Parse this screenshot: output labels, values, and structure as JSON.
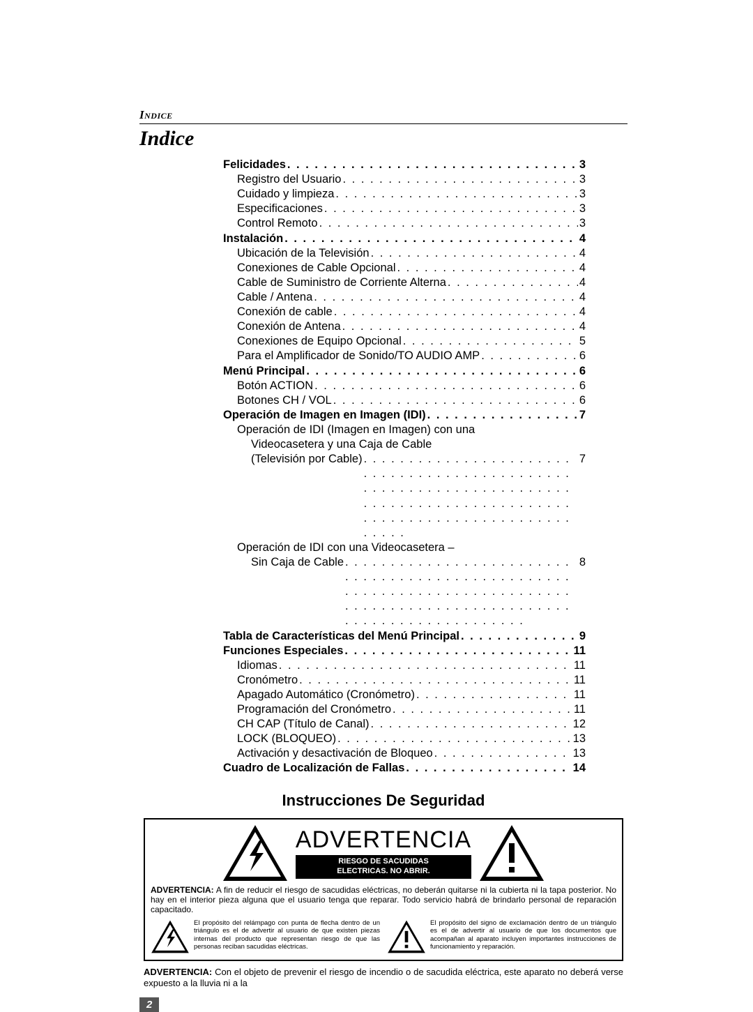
{
  "running_head": "Indice",
  "title": "Indice",
  "toc": [
    {
      "t": "bold",
      "label": "Felicidades",
      "page": "3"
    },
    {
      "t": "sub",
      "label": "Registro del Usuario",
      "page": "3"
    },
    {
      "t": "sub",
      "label": "Cuidado y limpieza",
      "page": "3"
    },
    {
      "t": "sub",
      "label": "Especificaciones",
      "page": "3"
    },
    {
      "t": "sub",
      "label": "Control Remoto",
      "page": "3"
    },
    {
      "t": "bold",
      "label": "Instalación",
      "page": "4"
    },
    {
      "t": "sub",
      "label": "Ubicación de la Televisión",
      "page": "4"
    },
    {
      "t": "sub",
      "label": "Conexiones de Cable Opcional",
      "page": "4"
    },
    {
      "t": "sub",
      "label": "Cable de Suministro de Corriente Alterna",
      "page": "4"
    },
    {
      "t": "sub",
      "label": "Cable / Antena",
      "page": "4"
    },
    {
      "t": "sub",
      "label": "Conexión de cable",
      "page": "4"
    },
    {
      "t": "sub",
      "label": "Conexión de Antena",
      "page": "4"
    },
    {
      "t": "sub",
      "label": "Conexiones de Equipo Opcional",
      "page": "5"
    },
    {
      "t": "sub",
      "label": "Para el Amplificador de Sonido/TO AUDIO AMP",
      "page": "6"
    },
    {
      "t": "bold",
      "label": "Menú Principal",
      "page": "6"
    },
    {
      "t": "sub",
      "label": "Botón ACTION",
      "page": "6"
    },
    {
      "t": "sub",
      "label": "Botones CH / VOL",
      "page": "6"
    },
    {
      "t": "bold",
      "label": "Operación de Imagen en Imagen (IDI)",
      "page": "7"
    },
    {
      "t": "multi",
      "lines": [
        "Operación de IDI (Imagen en Imagen) con una",
        "Videocasetera y una Caja de Cable"
      ],
      "last": "(Televisión por Cable)",
      "page": "7"
    },
    {
      "t": "multi",
      "lines": [
        "Operación de IDI con una Videocasetera –"
      ],
      "last": "Sin Caja de Cable",
      "page": "8"
    },
    {
      "t": "bold",
      "label": "Tabla de Características del Menú Principal",
      "page": "9"
    },
    {
      "t": "bold",
      "label": "Funciones Especiales",
      "page": "11"
    },
    {
      "t": "sub",
      "label": "Idiomas",
      "page": "11"
    },
    {
      "t": "sub",
      "label": "Cronómetro",
      "page": "11"
    },
    {
      "t": "sub",
      "label": "Apagado Automático (Cronómetro)",
      "page": "11"
    },
    {
      "t": "sub",
      "label": "Programación del Cronómetro",
      "page": "11"
    },
    {
      "t": "sub",
      "label": "CH CAP (Título de Canal)",
      "page": "12"
    },
    {
      "t": "sub",
      "label": "LOCK (BLOQUEO)",
      "page": "13"
    },
    {
      "t": "sub",
      "label": "Activación y desactivación de Bloqueo",
      "page": "13"
    },
    {
      "t": "bold",
      "label": "Cuadro de Localización de Fallas",
      "page": "14"
    }
  ],
  "safety_title": "Instrucciones De Seguridad",
  "warning": {
    "headline": "ADVERTENCIA",
    "blackbar_l1": "RIESGO DE SACUDIDAS",
    "blackbar_l2": "ELECTRICAS.  NO ABRIR.",
    "lead": "ADVERTENCIA:",
    "body": "A fin de reducir el riesgo de sacudidas eléctricas, no deberán quitarse ni la cubierta ni la tapa posterior.  No hay en el interior pieza alguna que el usuario tenga que reparar. Todo servicio habrá de brindarlo personal de reparación capacitado.",
    "col_left": "El propósito del relámpago con punta de flecha dentro de un triángulo es el de advertir al usuario de que existen piezas internas del producto que representan riesgo de que las personas reciban sacudidas eléctricas.",
    "col_right": "El propósito del signo de exclamación dentro de un triángulo es el de advertir al usuario de que los documentos que acompañan al aparato incluyen importantes instrucciones de funcionamiento y reparación."
  },
  "bottom_lead": "ADVERTENCIA:",
  "bottom_body": "Con el objeto de prevenir el riesgo de incendio o de sacudida eléctrica, este aparato no deberá verse expuesto a la lluvia ni a la",
  "page_number": "2",
  "colors": {
    "text": "#000000",
    "page_bg": "#ffffff",
    "pagenum_bg": "#555555",
    "pagenum_fg": "#ffffff",
    "blackbar_bg": "#000000",
    "blackbar_fg": "#ffffff"
  }
}
